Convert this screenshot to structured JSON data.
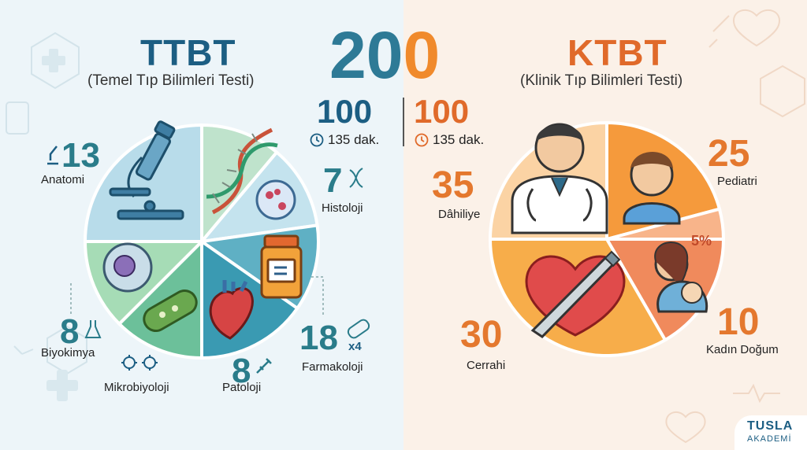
{
  "total": "200",
  "ttbt": {
    "title": "TTBT",
    "subtitle": "(Temel Tıp Bilimleri Testi)",
    "questions": "100",
    "duration": "135 dak.",
    "color": "#1c5e83",
    "subjects": [
      {
        "name": "Anatomi",
        "count": "13"
      },
      {
        "name": "Histoloji",
        "count": "7"
      },
      {
        "name": "Farmakoloji",
        "count": "18",
        "extra": "x4"
      },
      {
        "name": "Patoloji",
        "count": "8"
      },
      {
        "name": "Mikrobiyoloji",
        "count": ""
      },
      {
        "name": "Biyokimya",
        "count": "8"
      }
    ]
  },
  "ktbt": {
    "title": "KTBT",
    "subtitle": "(Klinik Tıp Bilimleri Testi)",
    "questions": "100",
    "duration": "135 dak.",
    "color": "#e06a2a",
    "subjects": [
      {
        "name": "Dâhiliye",
        "count": "35"
      },
      {
        "name": "Pediatri",
        "count": "25"
      },
      {
        "name": "Kadın Doğum",
        "count": "10",
        "percent": "5%"
      },
      {
        "name": "Cerrahi",
        "count": "30"
      }
    ]
  },
  "brand": {
    "line1": "TUSLA",
    "line2": "AKADEMİ"
  }
}
